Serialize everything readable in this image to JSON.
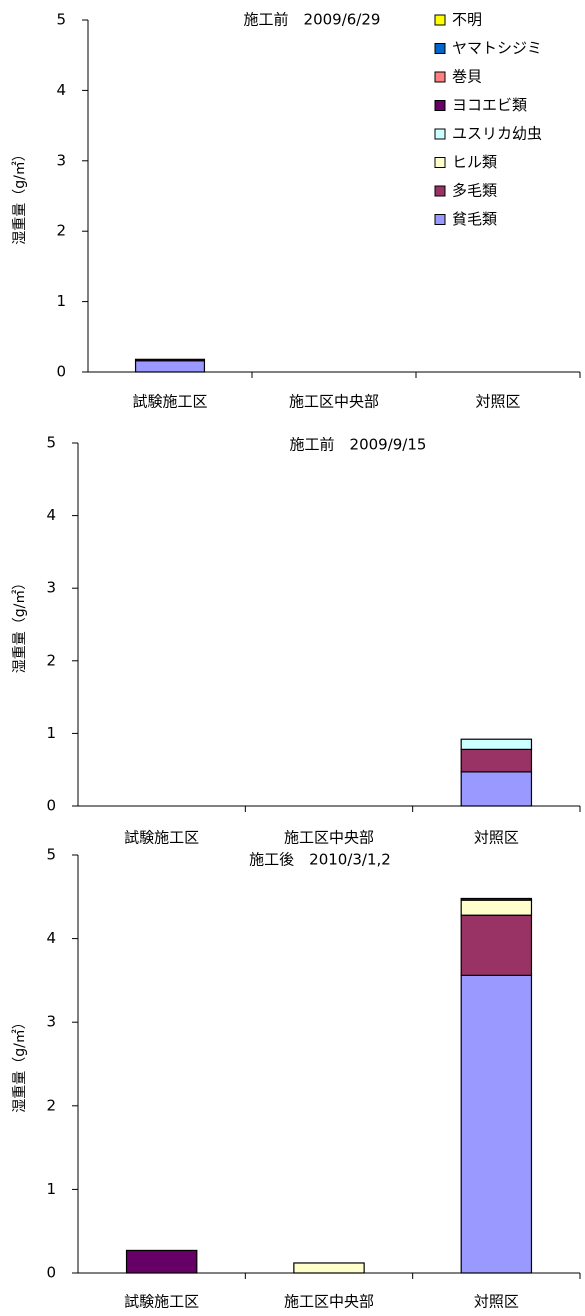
{
  "chart_data": [
    {
      "type": "bar",
      "stacked": true,
      "title": "施工前　2009/6/29",
      "ylabel": "湿重量（g/㎡）",
      "categories": [
        "試験施工区",
        "施工区中央部",
        "対照区"
      ],
      "ylim": [
        0,
        5
      ],
      "yticks": [
        0,
        1,
        2,
        3,
        4,
        5
      ],
      "legend": "top-right",
      "series": [
        {
          "name": "貧毛類",
          "color": "#9999ff",
          "values": [
            0.16,
            0,
            0
          ]
        },
        {
          "name": "多毛類",
          "color": "#993366",
          "values": [
            0,
            0,
            0
          ]
        },
        {
          "name": "ヒル類",
          "color": "#ffffcc",
          "values": [
            0,
            0,
            0
          ]
        },
        {
          "name": "ユスリカ幼虫",
          "color": "#ccffff",
          "values": [
            0,
            0,
            0
          ]
        },
        {
          "name": "ヨコエビ類",
          "color": "#660066",
          "values": [
            0.02,
            0,
            0
          ]
        },
        {
          "name": "巻貝",
          "color": "#ff8080",
          "values": [
            0,
            0,
            0
          ]
        },
        {
          "name": "ヤマトシジミ",
          "color": "#0066cc",
          "values": [
            0,
            0,
            0
          ]
        },
        {
          "name": "不明",
          "color": "#ffff00",
          "values": [
            0,
            0,
            0
          ]
        }
      ]
    },
    {
      "type": "bar",
      "stacked": true,
      "title": "施工前　2009/9/15",
      "ylabel": "湿重量（g/㎡）",
      "categories": [
        "試験施工区",
        "施工区中央部",
        "対照区"
      ],
      "ylim": [
        0,
        5
      ],
      "yticks": [
        0,
        1,
        2,
        3,
        4,
        5
      ],
      "series": [
        {
          "values": [
            0,
            0,
            0.47
          ]
        },
        {
          "values": [
            0,
            0,
            0.31
          ]
        },
        {
          "values": [
            0,
            0,
            0
          ]
        },
        {
          "values": [
            0,
            0,
            0.14
          ]
        },
        {
          "values": [
            0,
            0,
            0
          ]
        },
        {
          "values": [
            0,
            0,
            0
          ]
        },
        {
          "values": [
            0,
            0,
            0
          ]
        },
        {
          "values": [
            0,
            0,
            0
          ]
        }
      ]
    },
    {
      "type": "bar",
      "stacked": true,
      "title": "施工後　2010/3/1,2",
      "ylabel": "湿重量（g/㎡）",
      "categories": [
        "試験施工区",
        "施工区中央部",
        "対照区"
      ],
      "ylim": [
        0,
        5
      ],
      "yticks": [
        0,
        1,
        2,
        3,
        4,
        5
      ],
      "series": [
        {
          "values": [
            0,
            0,
            3.56
          ]
        },
        {
          "values": [
            0,
            0,
            0.72
          ]
        },
        {
          "values": [
            0,
            0.12,
            0.18
          ]
        },
        {
          "values": [
            0,
            0,
            0
          ]
        },
        {
          "values": [
            0.27,
            0,
            0.02
          ]
        },
        {
          "values": [
            0,
            0,
            0
          ]
        },
        {
          "values": [
            0,
            0,
            0
          ]
        },
        {
          "values": [
            0,
            0,
            0
          ]
        }
      ]
    }
  ]
}
